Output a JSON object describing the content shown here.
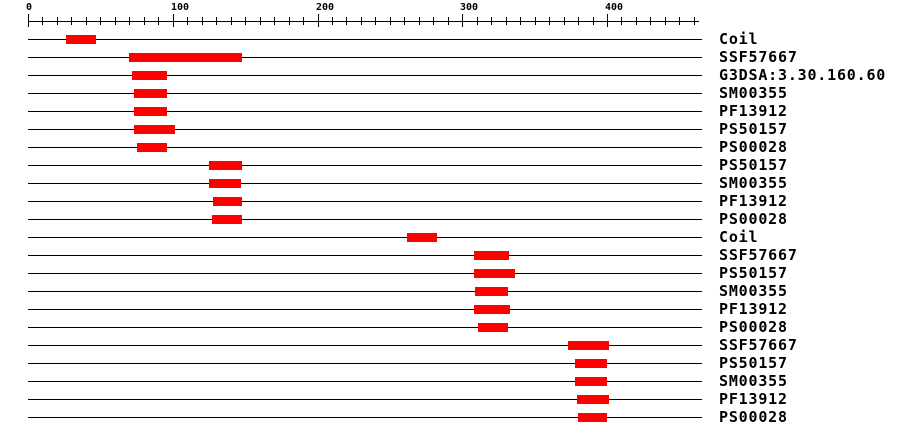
{
  "chart_data": {
    "type": "bar",
    "subtype": "protein-sequence-feature-tracks",
    "orientation": "horizontal",
    "title": "",
    "xlabel": "",
    "ylabel": "",
    "axis": {
      "min": 0,
      "max": 460,
      "major_tick_interval": 100,
      "minor_tick_interval": 10,
      "major_ticks": [
        0,
        100,
        200,
        300,
        400
      ],
      "major_tick_labels": [
        "0",
        "100",
        "200",
        "300",
        "400"
      ],
      "grid": false
    },
    "legend": null,
    "tracks": [
      {
        "label": "Coil",
        "start": 26,
        "end": 47
      },
      {
        "label": "SSF57667",
        "start": 70,
        "end": 148
      },
      {
        "label": "G3DSA:3.30.160.60",
        "start": 72,
        "end": 96
      },
      {
        "label": "SM00355",
        "start": 73,
        "end": 96
      },
      {
        "label": "PF13912",
        "start": 73,
        "end": 96
      },
      {
        "label": "PS50157",
        "start": 73,
        "end": 101
      },
      {
        "label": "PS00028",
        "start": 75,
        "end": 96
      },
      {
        "label": "PS50157",
        "start": 125,
        "end": 148
      },
      {
        "label": "SM00355",
        "start": 125,
        "end": 147
      },
      {
        "label": "PF13912",
        "start": 128,
        "end": 148
      },
      {
        "label": "PS00028",
        "start": 127,
        "end": 148
      },
      {
        "label": "Coil",
        "start": 262,
        "end": 283
      },
      {
        "label": "SSF57667",
        "start": 308,
        "end": 332
      },
      {
        "label": "PS50157",
        "start": 308,
        "end": 336
      },
      {
        "label": "SM00355",
        "start": 309,
        "end": 332
      },
      {
        "label": "PF13912",
        "start": 308,
        "end": 333
      },
      {
        "label": "PS00028",
        "start": 311,
        "end": 332
      },
      {
        "label": "SSF57667",
        "start": 373,
        "end": 401
      },
      {
        "label": "PS50157",
        "start": 378,
        "end": 400
      },
      {
        "label": "SM00355",
        "start": 378,
        "end": 400
      },
      {
        "label": "PF13912",
        "start": 379,
        "end": 401
      },
      {
        "label": "PS00028",
        "start": 380,
        "end": 400
      }
    ],
    "colors": {
      "feature": "#ff0000",
      "line": "#000000",
      "text": "#000000",
      "background": "#ffffff"
    }
  }
}
